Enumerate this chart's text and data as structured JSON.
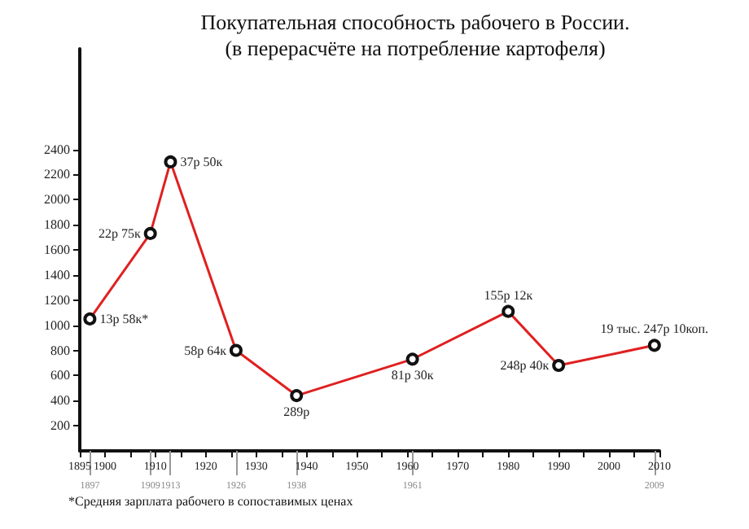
{
  "chart_data": {
    "type": "line",
    "title": "Покупательная способность рабочего в России.",
    "subtitle": "(в перерасчёте на потребление картофеля)",
    "x": [
      1897,
      1909,
      1913,
      1926,
      1938,
      1961,
      1980,
      1990,
      2009
    ],
    "series": [
      {
        "color": "#e02020",
        "values": [
          1050,
          1730,
          2300,
          800,
          440,
          730,
          1110,
          680,
          840
        ]
      }
    ],
    "xlim": [
      1895,
      2010
    ],
    "xticks": [
      1895,
      1900,
      {
        "value": 1905,
        "label": null
      },
      1910,
      {
        "value": 1915,
        "label": null
      },
      1920,
      {
        "value": 1925,
        "label": null
      },
      1930,
      {
        "value": 1935,
        "label": null
      },
      1940,
      {
        "value": 1945,
        "label": null
      },
      1950,
      {
        "value": 1955,
        "label": null
      },
      1960,
      {
        "value": 1965,
        "label": null
      },
      1970,
      {
        "value": 1975,
        "label": null
      },
      1980,
      {
        "value": 1985,
        "label": null
      },
      1990,
      {
        "value": 1995,
        "label": null
      },
      2000,
      {
        "value": 2005,
        "label": null
      },
      2010
    ],
    "x2lim": [
      1895,
      2010
    ],
    "x2ticks": [
      1897,
      1909,
      1913,
      1926,
      1938,
      1961,
      2009
    ],
    "ylim": [
      0,
      3200
    ],
    "yticks": [
      200,
      400,
      600,
      800,
      1000,
      1200,
      1400,
      1600,
      1800,
      2000,
      2200,
      2400
    ],
    "marker": "circle",
    "line_style": "solid",
    "annotations": [
      {
        "text": "13р 58к*",
        "x": 1897,
        "y": 1050
      },
      {
        "text": "22р 75к",
        "x": 1909,
        "y": 1730
      },
      {
        "text": "37р 50к",
        "x": 1913,
        "y": 2300
      },
      {
        "text": "58р 64к",
        "x": 1926,
        "y": 800
      },
      {
        "text": "289р",
        "x": 1938,
        "y": 440
      },
      {
        "text": "81р 30к",
        "x": 1961,
        "y": 730
      },
      {
        "text": "155р 12к",
        "x": 1980,
        "y": 1110
      },
      {
        "text": "248р 40к",
        "x": 1990,
        "y": 680
      },
      {
        "text": "19 тыс. 247р 10коп.",
        "x": 2009,
        "y": 840
      },
      "*Средняя зарплата рабочего в сопоставимых ценах"
    ]
  }
}
